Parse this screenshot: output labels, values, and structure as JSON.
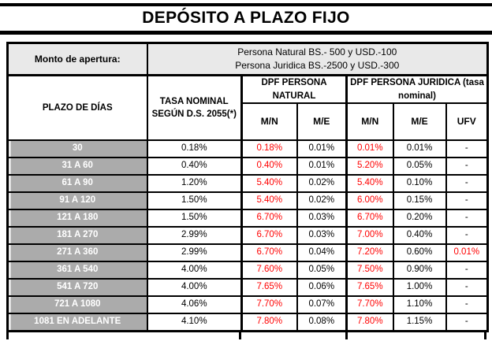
{
  "title": "DEPÓSITO A PLAZO FIJO",
  "colors": {
    "accent_red": "#ff0000",
    "row_label_bg": "#ababab",
    "apertura_bg": "#e9e9e9",
    "border": "#000000"
  },
  "apertura": {
    "label": "Monto de apertura:",
    "line1": "Persona Natural BS.- 500 y USD.-100",
    "line2": "Persona Juridica BS.-2500 y USD.-300"
  },
  "headers": {
    "plazo": "PLAZO DE DÍAS",
    "tasa": "TASA NOMINAL SEGÚN D.S. 2055(*)",
    "grupo_natural": "DPF PERSONA NATURAL",
    "grupo_juridica": "DPF PERSONA JURIDICA (tasa nominal)",
    "sub": [
      "M/N",
      "M/E",
      "M/N",
      "M/E",
      "UFV"
    ]
  },
  "rows": [
    {
      "label": "30",
      "cells": [
        {
          "v": "0.18%"
        },
        {
          "v": "0.18%",
          "red": true
        },
        {
          "v": "0.01%"
        },
        {
          "v": "0.01%",
          "red": true
        },
        {
          "v": "0.01%"
        },
        {
          "v": "-"
        }
      ]
    },
    {
      "label": "31 A 60",
      "cells": [
        {
          "v": "0.40%"
        },
        {
          "v": "0.40%",
          "red": true
        },
        {
          "v": "0.01%"
        },
        {
          "v": "5.20%",
          "red": true
        },
        {
          "v": "0.05%"
        },
        {
          "v": "-"
        }
      ]
    },
    {
      "label": "61 A 90",
      "cells": [
        {
          "v": "1.20%"
        },
        {
          "v": "5.40%",
          "red": true
        },
        {
          "v": "0.02%"
        },
        {
          "v": "5.40%",
          "red": true
        },
        {
          "v": "0.10%"
        },
        {
          "v": "-"
        }
      ]
    },
    {
      "label": "91 A 120",
      "cells": [
        {
          "v": "1.50%"
        },
        {
          "v": "5.40%",
          "red": true
        },
        {
          "v": "0.02%"
        },
        {
          "v": "6.00%",
          "red": true
        },
        {
          "v": "0.15%"
        },
        {
          "v": "-"
        }
      ]
    },
    {
      "label": "121 A 180",
      "cells": [
        {
          "v": "1.50%"
        },
        {
          "v": "6.70%",
          "red": true
        },
        {
          "v": "0.03%"
        },
        {
          "v": "6.70%",
          "red": true
        },
        {
          "v": "0.20%"
        },
        {
          "v": "-"
        }
      ]
    },
    {
      "label": "181 A 270",
      "cells": [
        {
          "v": "2.99%"
        },
        {
          "v": "6.70%",
          "red": true
        },
        {
          "v": "0.03%"
        },
        {
          "v": "7.00%",
          "red": true
        },
        {
          "v": "0.40%"
        },
        {
          "v": "-"
        }
      ]
    },
    {
      "label": "271 A 360",
      "cells": [
        {
          "v": "2.99%"
        },
        {
          "v": "6.70%",
          "red": true
        },
        {
          "v": "0.04%"
        },
        {
          "v": "7.20%",
          "red": true
        },
        {
          "v": "0.60%"
        },
        {
          "v": "0.01%",
          "red": true
        }
      ]
    },
    {
      "label": "361 A 540",
      "cells": [
        {
          "v": "4.00%"
        },
        {
          "v": "7.60%",
          "red": true
        },
        {
          "v": "0.05%"
        },
        {
          "v": "7.50%",
          "red": true
        },
        {
          "v": "0.90%"
        },
        {
          "v": "-"
        }
      ]
    },
    {
      "label": "541 A 720",
      "cells": [
        {
          "v": "4.00%"
        },
        {
          "v": "7.65%",
          "red": true
        },
        {
          "v": "0.06%"
        },
        {
          "v": "7.65%",
          "red": true
        },
        {
          "v": "1.00%"
        },
        {
          "v": "-"
        }
      ]
    },
    {
      "label": "721 A 1080",
      "cells": [
        {
          "v": "4.06%"
        },
        {
          "v": "7.70%",
          "red": true
        },
        {
          "v": "0.07%"
        },
        {
          "v": "7.70%",
          "red": true
        },
        {
          "v": "1.10%"
        },
        {
          "v": "-"
        }
      ]
    },
    {
      "label": "1081 EN ADELANTE",
      "cells": [
        {
          "v": "4.10%"
        },
        {
          "v": "7.80%",
          "red": true
        },
        {
          "v": "0.08%"
        },
        {
          "v": "7.80%",
          "red": true
        },
        {
          "v": "1.15%"
        },
        {
          "v": "-"
        }
      ]
    }
  ]
}
